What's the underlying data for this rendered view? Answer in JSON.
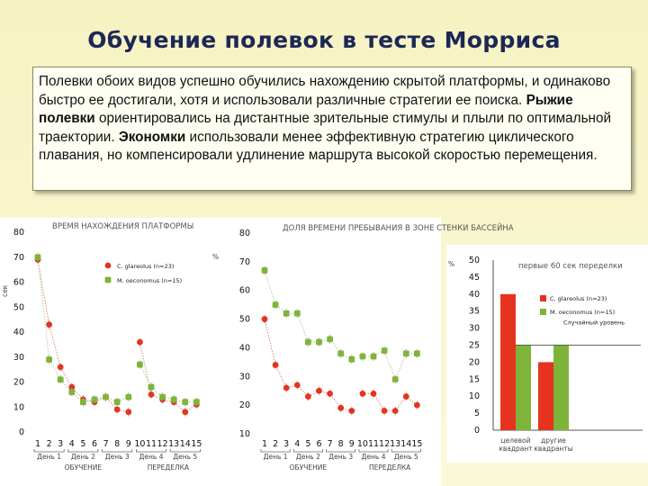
{
  "slide": {
    "title": "Обучение полевок в тесте Морриса",
    "text": {
      "p1": "Полевки обоих видов успешно обучились нахождению скрытой платформы, и одинаково быстро ее достигали, хотя и использовали различные стратегии ее поиска. ",
      "b1": "Рыжие полевки",
      "p2": " ориентировались на дистантные зрительные стимулы и плыли по оптимальной траектории. ",
      "b2": "Экономки",
      "p3": " использовали менее эффективную стратегию циклического плавания, но компенсировали удлинение маршрута высокой скоростью перемещения."
    }
  },
  "colors": {
    "red": "#e5331f",
    "green": "#7fb43a",
    "conn_red": "#d77d6c",
    "conn_green": "#a6c98a"
  },
  "chart_data": [
    {
      "type": "scatter",
      "title": "ВРЕМЯ НАХОЖДЕНИЯ ПЛАТФОРМЫ",
      "ylabel": "сек",
      "ylim": [
        0,
        80
      ],
      "yticks": [
        0,
        10,
        20,
        30,
        40,
        50,
        60,
        70,
        80
      ],
      "x": [
        1,
        2,
        3,
        4,
        5,
        6,
        7,
        8,
        9,
        10,
        11,
        12,
        13,
        14,
        15
      ],
      "session_breaks": [
        9
      ],
      "day_labels": [
        "День 1",
        "День 2",
        "День 3",
        "День 4",
        "День 5"
      ],
      "phase_labels": [
        "ОБУЧЕНИЕ",
        "ПЕРЕДЕЛКА"
      ],
      "series": [
        {
          "name": "C. glareolus (n=23)",
          "color": "red",
          "values": [
            69,
            43,
            26,
            18,
            13,
            12,
            14,
            9,
            8,
            36,
            15,
            13,
            12,
            8,
            11
          ]
        },
        {
          "name": "M. oeconomus (n=15)",
          "color": "green",
          "values": [
            70,
            29,
            21,
            16,
            12,
            13,
            14,
            12,
            14,
            27,
            18,
            14,
            13,
            12,
            12
          ]
        }
      ]
    },
    {
      "type": "scatter",
      "title": "ДОЛЯ ВРЕМЕНИ ПРЕБЫВАНИЯ В ЗОНЕ СТЕНКИ БАССЕЙНА",
      "ylabel": "%",
      "ylim": [
        10,
        80
      ],
      "yticks": [
        10,
        20,
        30,
        40,
        50,
        60,
        70,
        80
      ],
      "x": [
        1,
        2,
        3,
        4,
        5,
        6,
        7,
        8,
        9,
        10,
        11,
        12,
        13,
        14,
        15
      ],
      "session_breaks": [
        9
      ],
      "day_labels": [
        "День 1",
        "День 2",
        "День 3",
        "День 4",
        "День 5"
      ],
      "phase_labels": [
        "ОБУЧЕНИЕ",
        "ПЕРЕДЕЛКА"
      ],
      "series": [
        {
          "name": "C. glareolus",
          "color": "red",
          "values": [
            50,
            34,
            26,
            27,
            23,
            25,
            24,
            19,
            18,
            24,
            24,
            18,
            18,
            23,
            20
          ]
        },
        {
          "name": "M. oeconomus",
          "color": "green",
          "values": [
            67,
            55,
            52,
            52,
            42,
            42,
            43,
            38,
            36,
            37,
            37,
            39,
            29,
            38,
            38
          ]
        }
      ]
    },
    {
      "type": "bar",
      "title": "первые 60 сек переделки",
      "ylabel": "%",
      "ylim": [
        0,
        50
      ],
      "yticks": [
        0,
        5,
        10,
        15,
        20,
        25,
        30,
        35,
        40,
        45,
        50
      ],
      "categories": [
        "целевой квадрант",
        "другие квадранты"
      ],
      "series": [
        {
          "name": "C. glareolus (n=23)",
          "color": "red",
          "values": [
            40,
            20
          ]
        },
        {
          "name": "M. oeconomus (n=15)",
          "color": "green",
          "values": [
            25,
            25
          ]
        }
      ],
      "reference_line": {
        "value": 25,
        "label": "Случайный уровень"
      }
    }
  ]
}
